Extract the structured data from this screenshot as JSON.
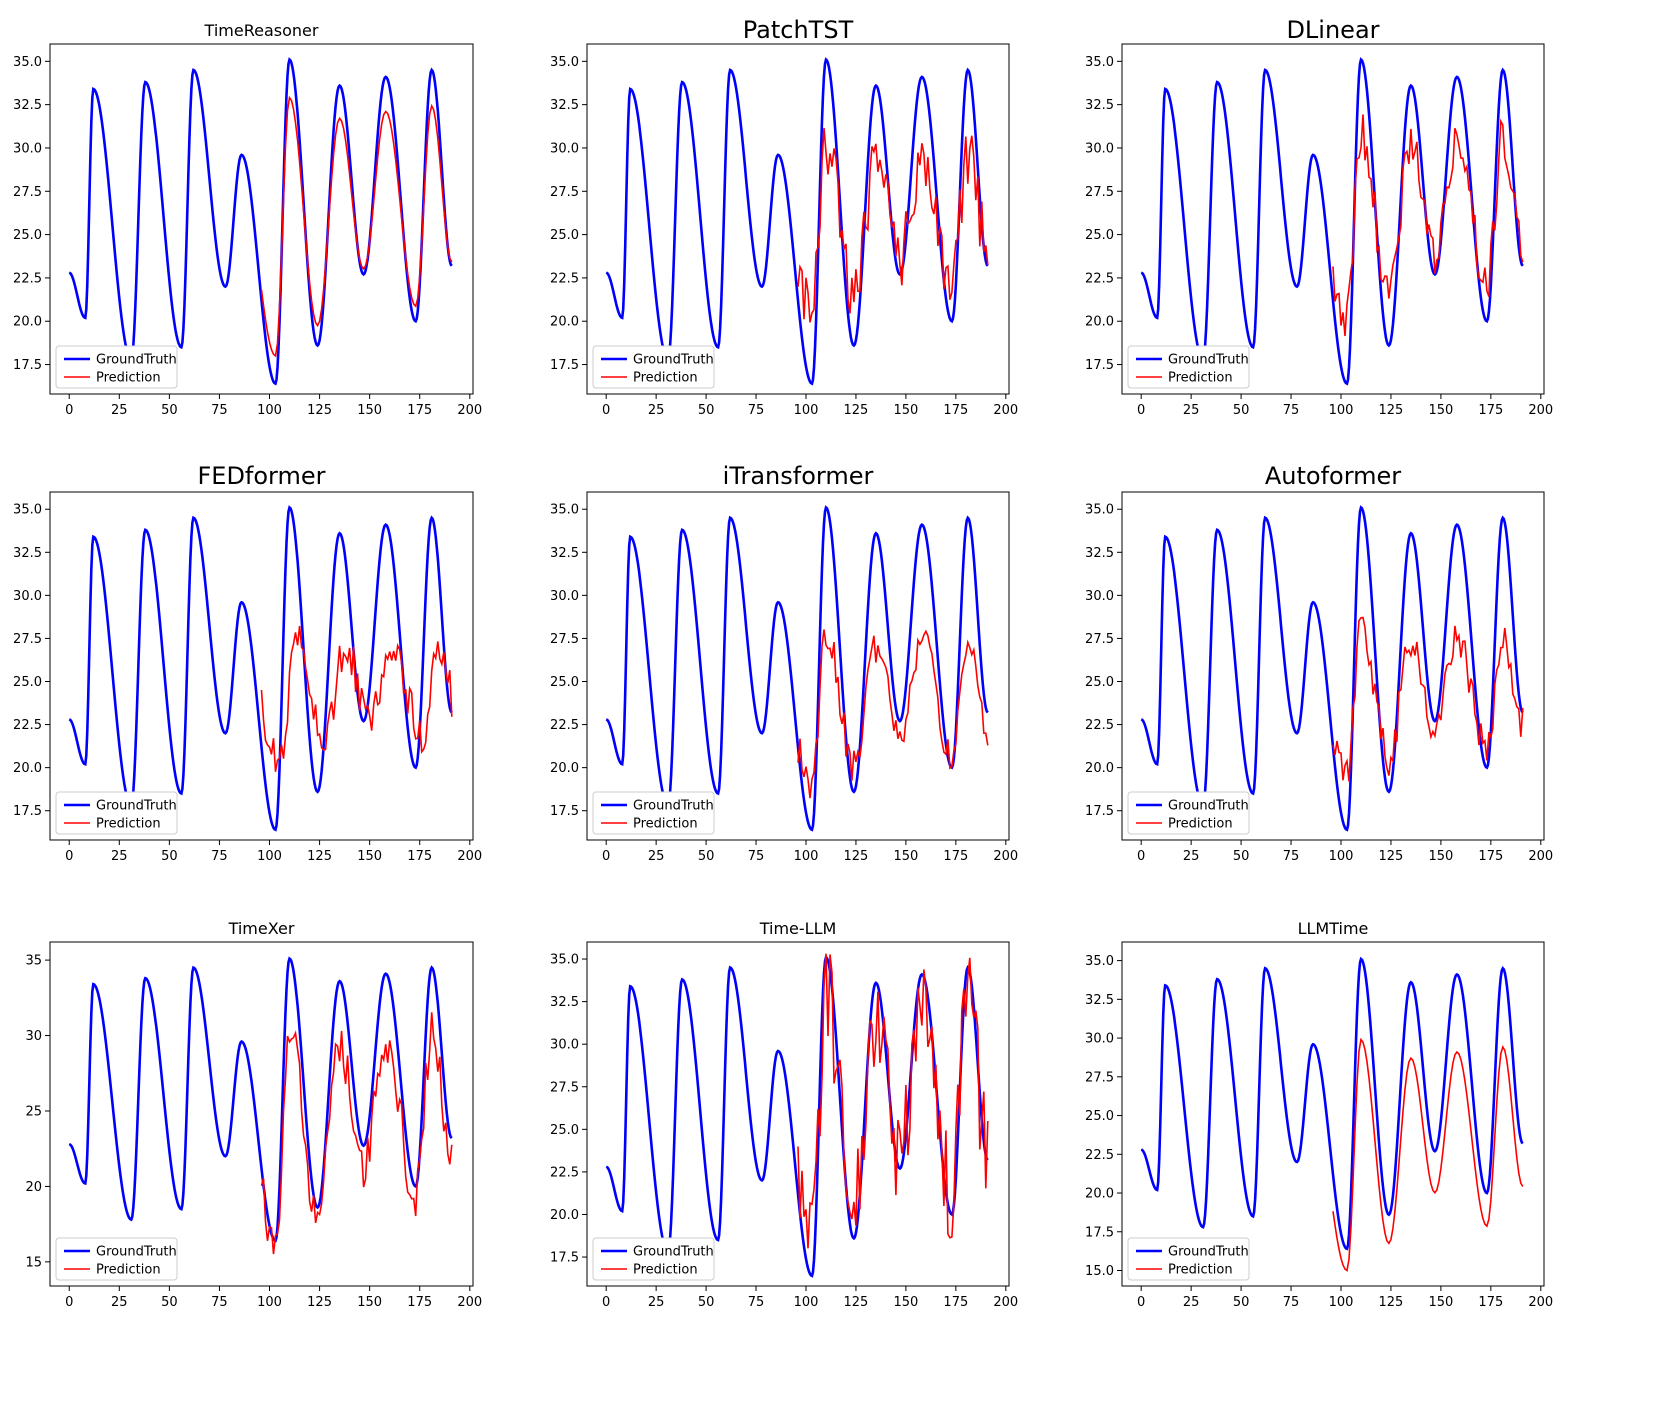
{
  "chart_data": [
    {
      "type": "line",
      "title": "TimeReasoner",
      "x": [
        0,
        25,
        50,
        75,
        100,
        125,
        150,
        175,
        200
      ],
      "yticks": [
        "17.5",
        "20.0",
        "22.5",
        "25.0",
        "27.5",
        "30.0",
        "32.5",
        "35.0"
      ],
      "ylim": [
        15.8,
        36.0
      ],
      "series": [
        {
          "name": "GroundTruth",
          "kind": "gt"
        },
        {
          "name": "Prediction",
          "kind": "pred",
          "style": "smooth",
          "amp": [
            18.0,
            32.9
          ],
          "phase": 0
        }
      ]
    },
    {
      "type": "line",
      "title": "PatchTST",
      "x": [
        0,
        25,
        50,
        75,
        100,
        125,
        150,
        175,
        200
      ],
      "yticks": [
        "17.5",
        "20.0",
        "22.5",
        "25.0",
        "27.5",
        "30.0",
        "32.5",
        "35.0"
      ],
      "ylim": [
        15.8,
        36.0
      ],
      "series": [
        {
          "name": "GroundTruth",
          "kind": "gt"
        },
        {
          "name": "Prediction",
          "kind": "pred",
          "style": "noisy",
          "amp": [
            20.5,
            30.0
          ],
          "noise": 1.8,
          "seed": 3
        }
      ]
    },
    {
      "type": "line",
      "title": "DLinear",
      "x": [
        0,
        25,
        50,
        75,
        100,
        125,
        150,
        175,
        200
      ],
      "yticks": [
        "17.5",
        "20.0",
        "22.5",
        "25.0",
        "27.5",
        "30.0",
        "32.5",
        "35.0"
      ],
      "ylim": [
        15.8,
        36.0
      ],
      "series": [
        {
          "name": "GroundTruth",
          "kind": "gt"
        },
        {
          "name": "Prediction",
          "kind": "pred",
          "style": "noisy",
          "amp": [
            20.3,
            31.0
          ],
          "noise": 1.3,
          "seed": 7
        }
      ]
    },
    {
      "type": "line",
      "title": "FEDformer",
      "x": [
        0,
        25,
        50,
        75,
        100,
        125,
        150,
        175,
        200
      ],
      "yticks": [
        "17.5",
        "20.0",
        "22.5",
        "25.0",
        "27.5",
        "30.0",
        "32.5",
        "35.0"
      ],
      "ylim": [
        15.8,
        36.0
      ],
      "series": [
        {
          "name": "GroundTruth",
          "kind": "gt"
        },
        {
          "name": "Prediction",
          "kind": "pred",
          "style": "noisy",
          "amp": [
            20.5,
            27.5
          ],
          "noise": 1.2,
          "seed": 11,
          "shift": -3
        }
      ]
    },
    {
      "type": "line",
      "title": "iTransformer",
      "x": [
        0,
        25,
        50,
        75,
        100,
        125,
        150,
        175,
        200
      ],
      "yticks": [
        "17.5",
        "20.0",
        "22.5",
        "25.0",
        "27.5",
        "30.0",
        "32.5",
        "35.0"
      ],
      "ylim": [
        15.8,
        36.0
      ],
      "series": [
        {
          "name": "GroundTruth",
          "kind": "gt"
        },
        {
          "name": "Prediction",
          "kind": "pred",
          "style": "noisy",
          "amp": [
            19.0,
            27.8
          ],
          "noise": 1.0,
          "seed": 13
        }
      ]
    },
    {
      "type": "line",
      "title": "Autoformer",
      "x": [
        0,
        25,
        50,
        75,
        100,
        125,
        150,
        175,
        200
      ],
      "yticks": [
        "17.5",
        "20.0",
        "22.5",
        "25.0",
        "27.5",
        "30.0",
        "32.5",
        "35.0"
      ],
      "ylim": [
        15.8,
        36.0
      ],
      "series": [
        {
          "name": "GroundTruth",
          "kind": "gt"
        },
        {
          "name": "Prediction",
          "kind": "pred",
          "style": "noisy",
          "amp": [
            19.5,
            28.0
          ],
          "noise": 1.0,
          "seed": 17
        }
      ]
    },
    {
      "type": "line",
      "title": "TimeXer",
      "x": [
        0,
        25,
        50,
        75,
        100,
        125,
        150,
        175,
        200
      ],
      "yticks": [
        "15",
        "20",
        "25",
        "30",
        "35"
      ],
      "ylim": [
        13.4,
        36.2
      ],
      "series": [
        {
          "name": "GroundTruth",
          "kind": "gt"
        },
        {
          "name": "Prediction",
          "kind": "pred",
          "style": "noisy",
          "amp": [
            16.5,
            30.5
          ],
          "noise": 1.5,
          "seed": 19
        }
      ]
    },
    {
      "type": "line",
      "title": "Time-LLM",
      "x": [
        0,
        25,
        50,
        75,
        100,
        125,
        150,
        175,
        200
      ],
      "yticks": [
        "17.5",
        "20.0",
        "22.5",
        "25.0",
        "27.5",
        "30.0",
        "32.5",
        "35.0"
      ],
      "ylim": [
        15.8,
        36.0
      ],
      "series": [
        {
          "name": "GroundTruth",
          "kind": "gt"
        },
        {
          "name": "Prediction",
          "kind": "pred",
          "style": "noisy",
          "amp": [
            18.5,
            33.0
          ],
          "noise": 3.0,
          "seed": 23
        }
      ]
    },
    {
      "type": "line",
      "title": "LLMTime",
      "x": [
        0,
        25,
        50,
        75,
        100,
        125,
        150,
        175,
        200
      ],
      "yticks": [
        "15.0",
        "17.5",
        "20.0",
        "22.5",
        "25.0",
        "27.5",
        "30.0",
        "32.5",
        "35.0"
      ],
      "ylim": [
        14.0,
        36.2
      ],
      "series": [
        {
          "name": "GroundTruth",
          "kind": "gt"
        },
        {
          "name": "Prediction",
          "kind": "pred",
          "style": "smooth",
          "amp": [
            15.0,
            29.9
          ],
          "phase": 1
        }
      ]
    }
  ],
  "colors": {
    "ground_truth": "#0000ff",
    "prediction": "#ff0000"
  },
  "legend": {
    "gt_label": "GroundTruth",
    "pred_label": "Prediction"
  }
}
